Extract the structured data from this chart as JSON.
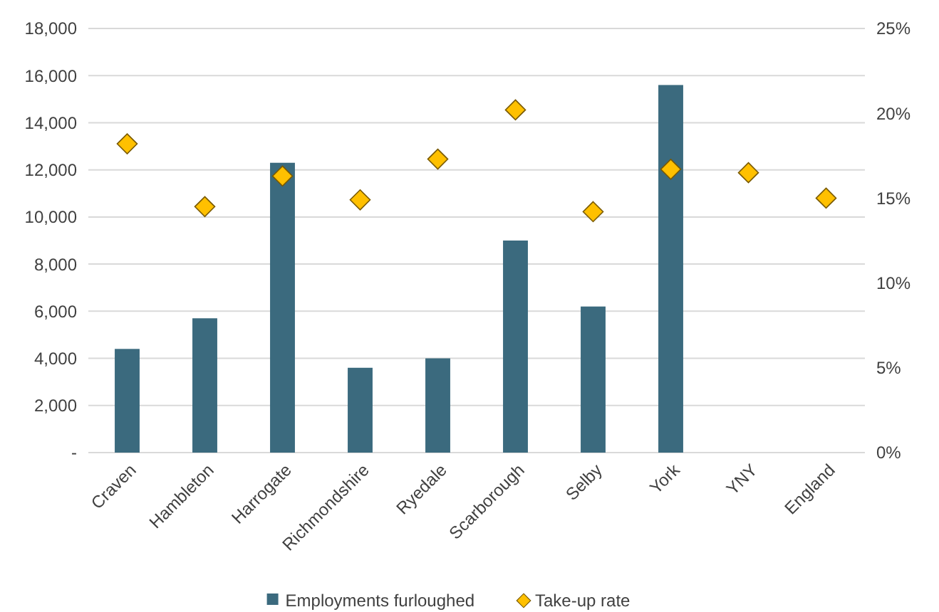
{
  "chart_data": {
    "type": "bar",
    "categories": [
      "Craven",
      "Hambleton",
      "Harrogate",
      "Richmondshire",
      "Ryedale",
      "Scarborough",
      "Selby",
      "York",
      "YNY",
      "England"
    ],
    "series": [
      {
        "name": "Employments furloughed",
        "color": "#3b6a7e",
        "values": [
          4400,
          5700,
          12300,
          3600,
          4000,
          9000,
          6200,
          15600,
          null,
          null
        ]
      },
      {
        "name": "Take-up rate",
        "type": "scatter",
        "axis": "y2",
        "color": "#ffc000",
        "marker": "diamond",
        "values": [
          18.2,
          14.5,
          16.3,
          14.9,
          17.3,
          20.2,
          14.2,
          16.7,
          16.5,
          15.0
        ]
      }
    ],
    "ylim": [
      0,
      18000
    ],
    "yticks": [
      {
        "value": 0,
        "label": "-"
      },
      {
        "value": 2000,
        "label": "2,000"
      },
      {
        "value": 4000,
        "label": "4,000"
      },
      {
        "value": 6000,
        "label": "6,000"
      },
      {
        "value": 8000,
        "label": "8,000"
      },
      {
        "value": 10000,
        "label": "10,000"
      },
      {
        "value": 12000,
        "label": "12,000"
      },
      {
        "value": 14000,
        "label": "14,000"
      },
      {
        "value": 16000,
        "label": "16,000"
      },
      {
        "value": 18000,
        "label": "18,000"
      }
    ],
    "y2lim": [
      0,
      25
    ],
    "y2ticks": [
      {
        "value": 0,
        "label": "0%"
      },
      {
        "value": 5,
        "label": "5%"
      },
      {
        "value": 10,
        "label": "10%"
      },
      {
        "value": 15,
        "label": "15%"
      },
      {
        "value": 20,
        "label": "20%"
      },
      {
        "value": 25,
        "label": "25%"
      }
    ],
    "grid": "y",
    "legend": "bottom"
  }
}
